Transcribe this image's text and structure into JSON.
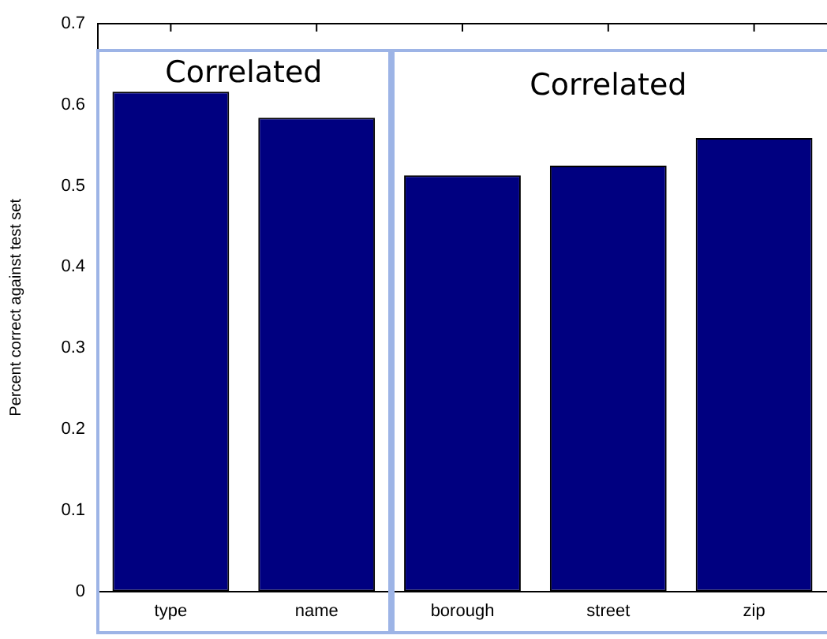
{
  "chart_data": {
    "type": "bar",
    "categories": [
      "type",
      "name",
      "borough",
      "street",
      "zip"
    ],
    "values": [
      0.616,
      0.584,
      0.513,
      0.525,
      0.559
    ],
    "color": "#000080",
    "ylabel": "Percent correct against test set",
    "ylim": [
      0,
      0.7
    ],
    "yticks": [
      0,
      0.1,
      0.2,
      0.3,
      0.4,
      0.5,
      0.6,
      0.7
    ],
    "grid": false,
    "legend": false,
    "annotations": [
      "Correlated",
      "Correlated"
    ]
  }
}
